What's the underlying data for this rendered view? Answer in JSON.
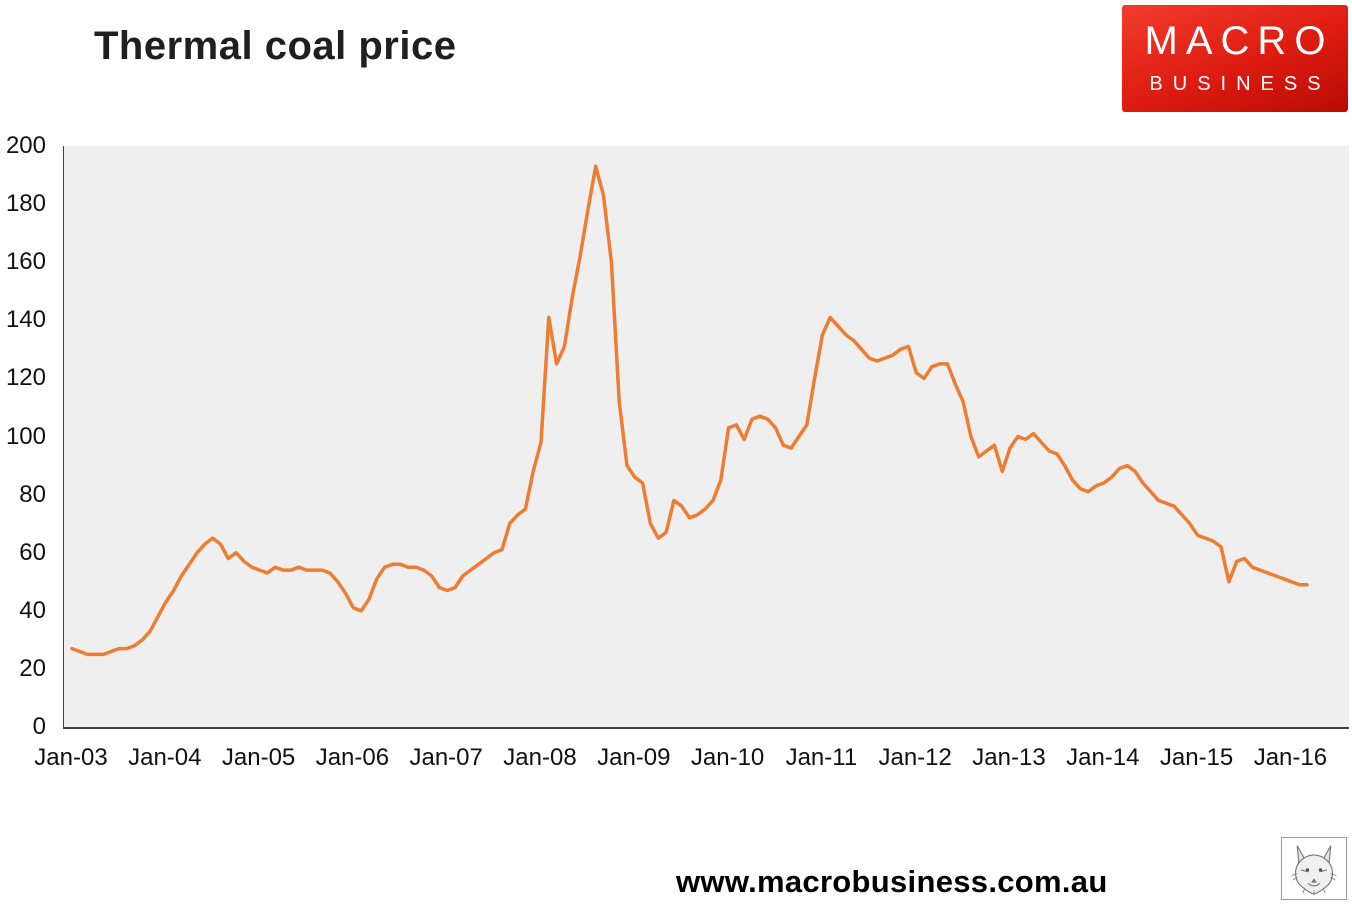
{
  "page": {
    "title": "Thermal coal price",
    "footer_url": "www.macrobusiness.com.au"
  },
  "logo": {
    "line1": "MACRO",
    "line2": "BUSINESS",
    "bg_color": "#d81a10",
    "text_color": "#ffffff"
  },
  "chart_data": {
    "type": "line",
    "title": "Thermal coal price",
    "xlabel": "",
    "ylabel": "",
    "ylim": [
      0,
      200
    ],
    "y_ticks": [
      0,
      20,
      40,
      60,
      80,
      100,
      120,
      140,
      160,
      180,
      200
    ],
    "x_tick_labels": [
      "Jan-03",
      "Jan-04",
      "Jan-05",
      "Jan-06",
      "Jan-07",
      "Jan-08",
      "Jan-09",
      "Jan-10",
      "Jan-11",
      "Jan-12",
      "Jan-13",
      "Jan-14",
      "Jan-15",
      "Jan-16"
    ],
    "x_frequency": "monthly",
    "x_start": "Jan-03",
    "grid": false,
    "legend": "none",
    "line_color": "#ED7D31",
    "plot_background": "#EFEFEF",
    "series": [
      {
        "name": "Thermal coal price",
        "values": [
          27,
          26,
          25,
          25,
          25,
          26,
          27,
          27,
          28,
          30,
          33,
          38,
          43,
          47,
          52,
          56,
          60,
          63,
          65,
          63,
          58,
          60,
          57,
          55,
          54,
          53,
          55,
          54,
          54,
          55,
          54,
          54,
          54,
          53,
          50,
          46,
          41,
          40,
          44,
          51,
          55,
          56,
          56,
          55,
          55,
          54,
          52,
          48,
          47,
          48,
          52,
          54,
          56,
          58,
          60,
          61,
          70,
          73,
          75,
          88,
          98,
          141,
          125,
          131,
          148,
          162,
          178,
          193,
          183,
          160,
          112,
          90,
          86,
          84,
          70,
          65,
          67,
          78,
          76,
          72,
          73,
          75,
          78,
          85,
          103,
          104,
          99,
          106,
          107,
          106,
          103,
          97,
          96,
          100,
          104,
          120,
          135,
          141,
          138,
          135,
          133,
          130,
          127,
          126,
          127,
          128,
          130,
          131,
          122,
          120,
          124,
          125,
          125,
          118,
          112,
          100,
          93,
          95,
          97,
          88,
          96,
          100,
          99,
          101,
          98,
          95,
          94,
          90,
          85,
          82,
          81,
          83,
          84,
          86,
          89,
          90,
          88,
          84,
          81,
          78,
          77,
          76,
          73,
          70,
          66,
          65,
          64,
          62,
          50,
          57,
          58,
          55,
          54,
          53,
          52,
          51,
          50,
          49,
          49
        ]
      }
    ]
  }
}
